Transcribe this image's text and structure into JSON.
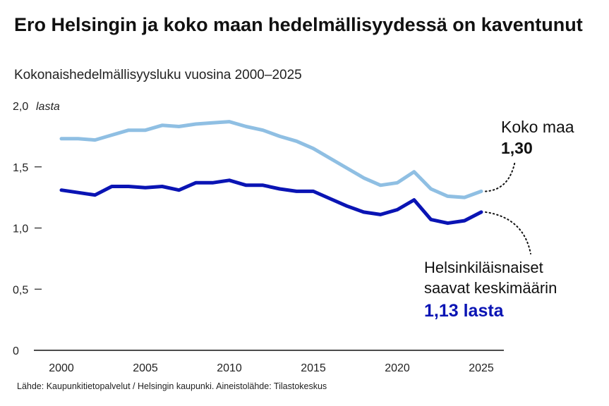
{
  "title": "Ero Helsingin ja koko maan hedelmällisyydessä on kaventunut",
  "subtitle": "Kokonaishedelmällisyysluku vuosina 2000–2025",
  "source": "Lähde: Kaupunkitietopalvelut / Helsingin kaupunki. Aineistolähde: Tilastokeskus",
  "colors": {
    "koko_maa": "#8fbfe3",
    "helsinki": "#0a14b4",
    "text": "#111111"
  },
  "chart_data": {
    "type": "line",
    "title": "Ero Helsingin ja koko maan hedelmällisyydessä on kaventunut",
    "subtitle": "Kokonaishedelmällisyysluku vuosina 2000–2025",
    "ylabel": "lasta",
    "ylim": [
      0,
      2.0
    ],
    "xlim": [
      2000,
      2025
    ],
    "y_ticks": [
      {
        "value": 0,
        "label": "0"
      },
      {
        "value": 0.5,
        "label": "0,5"
      },
      {
        "value": 1.0,
        "label": "1,0"
      },
      {
        "value": 1.5,
        "label": "1,5"
      },
      {
        "value": 2.0,
        "label": "2,0"
      }
    ],
    "x_ticks": [
      2000,
      2005,
      2010,
      2015,
      2020,
      2025
    ],
    "grid": false,
    "x": [
      2000,
      2001,
      2002,
      2003,
      2004,
      2005,
      2006,
      2007,
      2008,
      2009,
      2010,
      2011,
      2012,
      2013,
      2014,
      2015,
      2016,
      2017,
      2018,
      2019,
      2020,
      2021,
      2022,
      2023,
      2024,
      2025
    ],
    "series": [
      {
        "key": "koko_maa",
        "values": [
          1.73,
          1.73,
          1.72,
          1.76,
          1.8,
          1.8,
          1.84,
          1.83,
          1.85,
          1.86,
          1.87,
          1.83,
          1.8,
          1.75,
          1.71,
          1.65,
          1.57,
          1.49,
          1.41,
          1.35,
          1.37,
          1.46,
          1.32,
          1.26,
          1.25,
          1.3
        ],
        "annotation_lines": [
          "Koko maa",
          "1,30"
        ]
      },
      {
        "key": "helsinki",
        "values": [
          1.31,
          1.29,
          1.27,
          1.34,
          1.34,
          1.33,
          1.34,
          1.31,
          1.37,
          1.37,
          1.39,
          1.35,
          1.35,
          1.32,
          1.3,
          1.3,
          1.24,
          1.18,
          1.13,
          1.11,
          1.15,
          1.23,
          1.07,
          1.04,
          1.06,
          1.13
        ],
        "annotation_lines": [
          "Helsinkiläisnaiset",
          "saavat keskimäärin",
          "1,13 lasta"
        ]
      }
    ]
  }
}
